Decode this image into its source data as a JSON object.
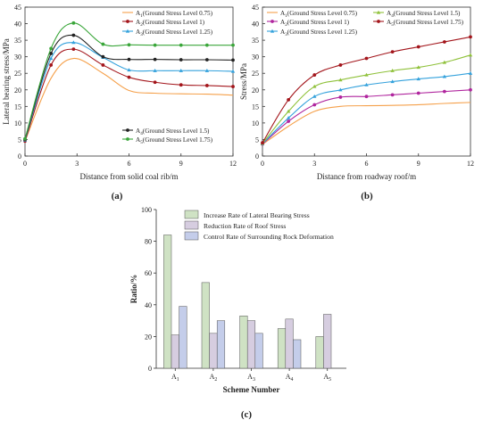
{
  "chart_data": [
    {
      "type": "line",
      "panel_label": "(a)",
      "xlabel": "Distance from solid coal rib/m",
      "ylabel": "Lateral bearing stress/MPa",
      "xlim": [
        0,
        12
      ],
      "ylim": [
        0,
        45
      ],
      "xticks": [
        "0",
        "3",
        "6",
        "9",
        "12"
      ],
      "yticks": [
        "0",
        "5",
        "10",
        "15",
        "20",
        "25",
        "30",
        "35",
        "40",
        "45"
      ],
      "x": [
        0,
        1.5,
        2.8,
        4.5,
        6,
        7.5,
        9,
        10.5,
        12
      ],
      "legend_placement": "top-right and lower-right",
      "series": [
        {
          "name": "A",
          "sub": "1",
          "suffix": "(Ground Stress Level 0.75)",
          "color": "#f5a04a",
          "marker": "none",
          "values": [
            4.5,
            23.5,
            29.5,
            25.0,
            19.8,
            19.0,
            18.8,
            18.7,
            18.4
          ]
        },
        {
          "name": "A",
          "sub": "2",
          "suffix": "(Ground Stress Level 1)",
          "color": "#a3151b",
          "marker": "circle",
          "values": [
            4.5,
            27.5,
            32.3,
            27.5,
            23.8,
            22.3,
            21.5,
            21.3,
            21.0
          ]
        },
        {
          "name": "A",
          "sub": "3",
          "suffix": "(Ground Stress Level 1.25)",
          "color": "#33a1dc",
          "marker": "triangle",
          "values": [
            4.8,
            29.5,
            34.3,
            29.8,
            26.0,
            25.8,
            25.8,
            25.8,
            25.6
          ]
        },
        {
          "name": "A",
          "sub": "4",
          "suffix": "(Ground Stress Level 1.5)",
          "color": "#222222",
          "marker": "circle",
          "values": [
            5.0,
            31.0,
            36.5,
            30.0,
            29.2,
            29.2,
            29.1,
            29.1,
            29.0
          ]
        },
        {
          "name": "A",
          "sub": "5",
          "suffix": "(Ground Stress Level 1.75)",
          "color": "#3aa63a",
          "marker": "circle",
          "values": [
            5.2,
            32.5,
            40.2,
            33.8,
            33.6,
            33.5,
            33.5,
            33.5,
            33.5
          ]
        }
      ]
    },
    {
      "type": "line",
      "panel_label": "(b)",
      "xlabel": "Distance from roadway roof/m",
      "ylabel": "Stress/MPa",
      "xlim": [
        0,
        12
      ],
      "ylim": [
        0,
        45
      ],
      "xticks": [
        "0",
        "3",
        "6",
        "9",
        "12"
      ],
      "yticks": [
        "0",
        "5",
        "10",
        "15",
        "20",
        "25",
        "30",
        "35",
        "40",
        "45"
      ],
      "x": [
        0,
        1.5,
        3,
        4.5,
        6,
        7.5,
        9,
        10.5,
        12
      ],
      "legend_placement": "top",
      "series": [
        {
          "name": "A",
          "sub": "1",
          "suffix": "(Ground Stress Level 0.75)",
          "color": "#f5a04a",
          "marker": "none",
          "values": [
            3.5,
            9.0,
            13.5,
            15.0,
            15.2,
            15.3,
            15.5,
            15.9,
            16.2
          ]
        },
        {
          "name": "A",
          "sub": "2",
          "suffix": "(Ground Stress Level 1)",
          "color": "#b0259e",
          "marker": "circle",
          "values": [
            3.6,
            10.5,
            15.5,
            17.8,
            18.0,
            18.5,
            19.0,
            19.5,
            20.0
          ]
        },
        {
          "name": "A",
          "sub": "3",
          "suffix": "(Ground Stress Level 1.25)",
          "color": "#33a1dc",
          "marker": "triangle",
          "values": [
            3.7,
            11.5,
            18.0,
            20.0,
            21.5,
            22.5,
            23.3,
            24.0,
            25.0
          ]
        },
        {
          "name": "A",
          "sub": "4",
          "suffix": "(Ground Stress Level 1.5)",
          "color": "#8fc13a",
          "marker": "triangle",
          "values": [
            3.8,
            13.5,
            21.0,
            23.0,
            24.5,
            25.8,
            26.8,
            28.3,
            30.5
          ]
        },
        {
          "name": "A",
          "sub": "5",
          "suffix": "(Ground Stress Level 1.75)",
          "color": "#a3151b",
          "marker": "circle",
          "values": [
            4.0,
            17.0,
            24.5,
            27.5,
            29.5,
            31.5,
            33.0,
            34.5,
            36.0
          ]
        }
      ]
    },
    {
      "type": "bar",
      "panel_label": "(c)",
      "xlabel": "Scheme Number",
      "ylabel": "Ratio/%",
      "ylim": [
        0,
        100
      ],
      "yticks": [
        "0",
        "20",
        "40",
        "60",
        "80",
        "100"
      ],
      "categories": [
        {
          "name": "A",
          "sub": "1"
        },
        {
          "name": "A",
          "sub": "2"
        },
        {
          "name": "A",
          "sub": "3"
        },
        {
          "name": "A",
          "sub": "4"
        },
        {
          "name": "A",
          "sub": "5"
        }
      ],
      "legend_placement": "top",
      "series": [
        {
          "name": "Increase Rate of Lateral Bearing Stress",
          "color": "#cfe2c4",
          "values": [
            84,
            54,
            33,
            25,
            20
          ]
        },
        {
          "name": "Reduction Rate of Roof Stress",
          "color": "#d6cde0",
          "values": [
            21,
            22,
            30,
            31,
            34
          ]
        },
        {
          "name": "Control Rate of Surrounding Rock Deformation",
          "color": "#c4cdea",
          "values": [
            39,
            30,
            22,
            18,
            0
          ]
        }
      ]
    }
  ]
}
